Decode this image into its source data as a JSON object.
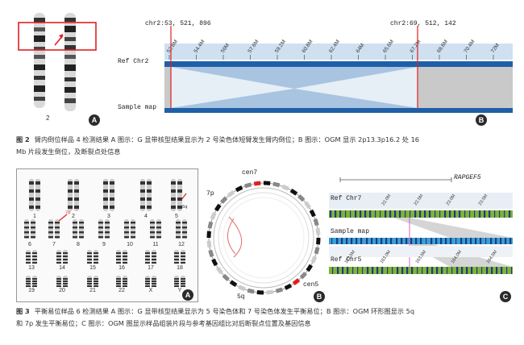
{
  "figure2": {
    "panelA": {
      "badge": "A",
      "chromosome_label": "2"
    },
    "panelB": {
      "badge": "B",
      "breakpoint_left": "chr2:53, 521, 896",
      "breakpoint_right": "chr2:69, 512, 142",
      "ref_label": "Ref Chr2",
      "sample_label": "Sample map",
      "ticks": [
        "52.8M",
        "54.4M",
        "56M",
        "57.6M",
        "59.2M",
        "60.8M",
        "62.4M",
        "64M",
        "65.6M",
        "67.2M",
        "68.8M",
        "70.4M",
        "72M"
      ]
    },
    "caption_num": "图 2",
    "caption_line1": "臂内倒位样品 4 检测结果   A 图示：G 显带核型结果显示为 2 号染色体短臂发生臂内倒位；B 图示：OGM 显示 2p13.3p16.2 处 16",
    "caption_line2": "Mb 片段发生倒位，及断裂点处信息"
  },
  "figure3": {
    "panelA": {
      "badge": "A",
      "labels_row1": [
        "1",
        "2",
        "3",
        "4",
        "5"
      ],
      "labels_row2": [
        "6",
        "7",
        "8",
        "9",
        "10",
        "11",
        "12"
      ],
      "labels_row3": [
        "13",
        "14",
        "15",
        "16",
        "17",
        "18"
      ],
      "labels_row4": [
        "19",
        "20",
        "21",
        "22",
        "X",
        "Y"
      ],
      "arrow_5q": "5q",
      "arrow_7p": "7p"
    },
    "panelB": {
      "badge": "B",
      "label_cen7": "cen7",
      "label_7p": "7p",
      "label_5q": "5q",
      "label_cen5": "cen5"
    },
    "panelC": {
      "badge": "C",
      "gene": "RAPGEF5",
      "ref_chr7": "Ref Chr7",
      "sample_label": "Sample map",
      "ref_chr5": "Ref Chr5",
      "ticks_top": [
        "22.0M",
        "22.5M",
        "23.0M",
        "23.5M"
      ],
      "ticks_bottom": [
        "162.5M",
        "163.0M",
        "163.5M",
        "164.0M",
        "164.5M"
      ]
    },
    "caption_num": "图 3",
    "caption_line1": "平衡易位样品 6 检测结果   A 图示：G 显带核型结果显示为 5 号染色体和 7 号染色体发生平衡易位；B 图示：OGM 环形图显示 5q",
    "caption_line2": "和 7p 发生平衡易位；C 图示：OGM 图显示样品组装片段与参考基因组比对后断裂点位置及基因信息"
  },
  "colors": {
    "highlight_red": "#e02020",
    "map_blue": "#1f5fa8",
    "band_green": "#7fb33a",
    "band_navy": "#1f3c7a",
    "sample_cyan": "#3aa0d8"
  }
}
